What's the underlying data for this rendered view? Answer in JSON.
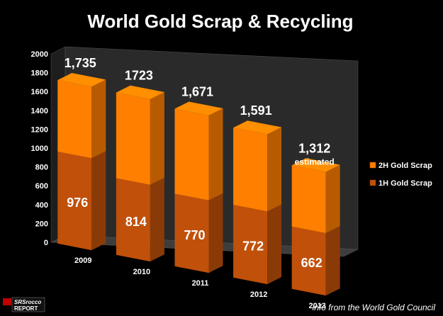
{
  "chart_data": {
    "type": "bar",
    "title": "World Gold Scrap & Recycling",
    "categories": [
      "2009",
      "2010",
      "2011",
      "2012",
      "2013"
    ],
    "series": [
      {
        "name": "1H Gold Scrap",
        "values": [
          976,
          814,
          770,
          772,
          662
        ],
        "color": "#c0500a"
      },
      {
        "name": "2H Gold Scrap",
        "values": [
          759,
          909,
          901,
          819,
          650
        ],
        "color": "#ff7f00"
      }
    ],
    "totals": [
      "1,735",
      "1723",
      "1,671",
      "1,591",
      "1,312"
    ],
    "inner_labels": [
      "976",
      "814",
      "770",
      "772",
      "662"
    ],
    "annotation": {
      "category": "2013",
      "text": "estimated"
    },
    "ylim": [
      0,
      2000
    ],
    "yticks": [
      "0",
      "200",
      "400",
      "600",
      "800",
      "1000",
      "1200",
      "1400",
      "1600",
      "1800",
      "2000"
    ],
    "xlabel": "",
    "ylabel": "",
    "grid": false,
    "legend": [
      "2H Gold Scrap",
      "1H Gold Scrap"
    ],
    "legend_position": "right"
  },
  "credit": "info from the World Gold Council",
  "logo": {
    "top": "SRSrocco",
    "bottom": "REPORT"
  },
  "colors": {
    "background": "#000000",
    "wall": "#2a2a2a",
    "floor": "#3d3d3d",
    "text": "#ffffff"
  }
}
